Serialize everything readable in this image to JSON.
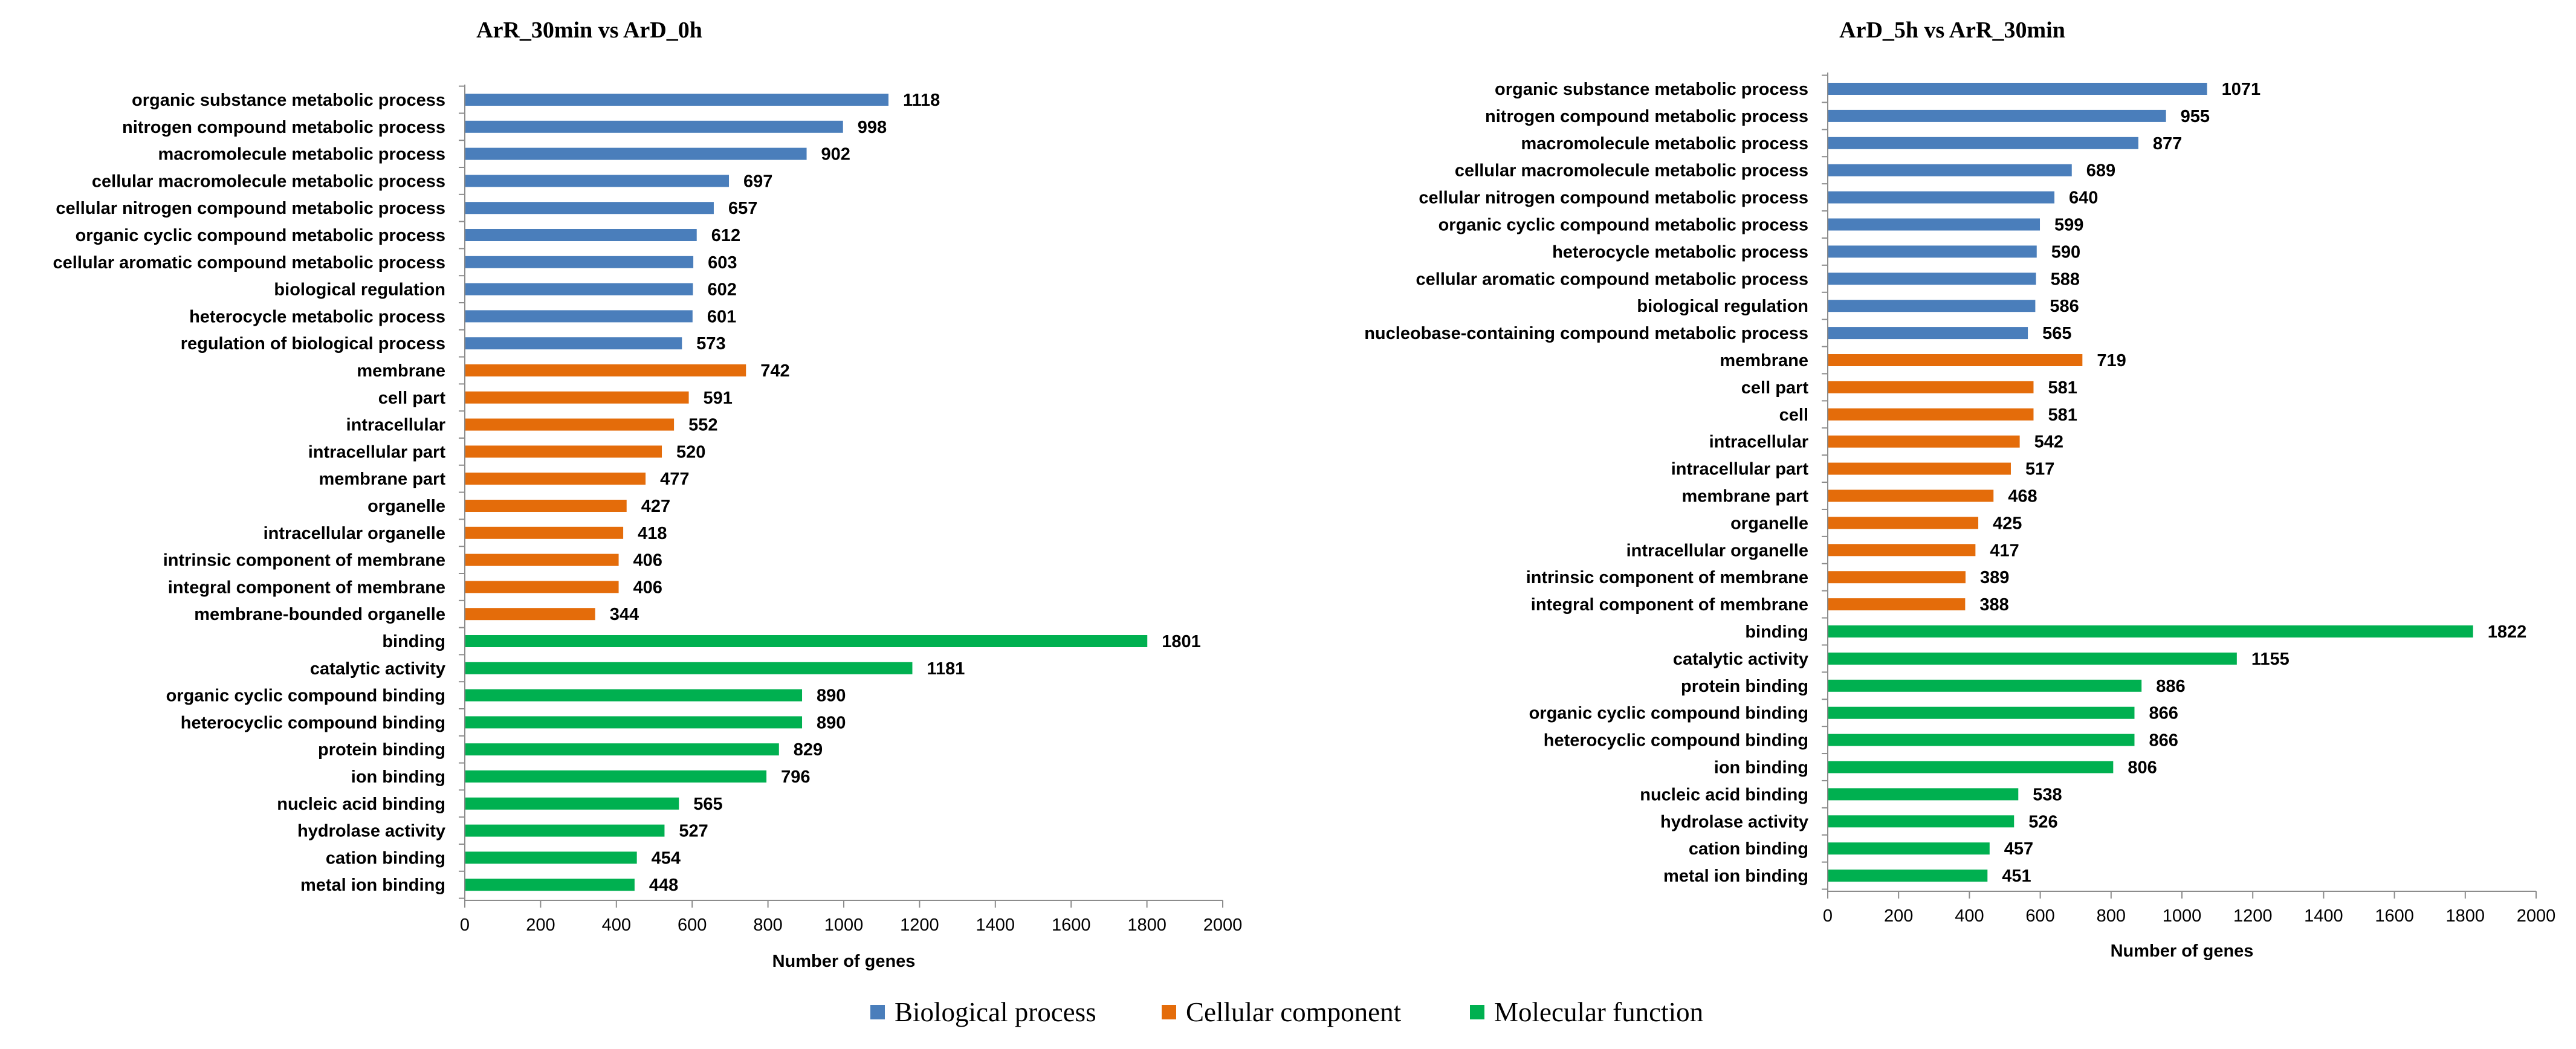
{
  "colors": {
    "Biological process": "#4a7ebb",
    "Cellular component": "#e46c0a",
    "Molecular function": "#00b050"
  },
  "legend": [
    "Biological process",
    "Cellular component",
    "Molecular function"
  ],
  "chart_data": [
    {
      "type": "bar",
      "orientation": "horizontal",
      "title": "ArR_30min vs ArD_0h",
      "xlabel": "Number of genes",
      "ylabel": "",
      "xlim": [
        0,
        2000
      ],
      "xticks": [
        0,
        200,
        400,
        600,
        800,
        1000,
        1200,
        1400,
        1600,
        1800,
        2000
      ],
      "categories": [
        "organic substance metabolic process",
        "nitrogen compound metabolic process",
        "macromolecule metabolic process",
        "cellular macromolecule metabolic process",
        "cellular nitrogen compound metabolic process",
        "organic cyclic compound metabolic process",
        "cellular aromatic compound metabolic process",
        "biological regulation",
        "heterocycle metabolic process",
        "regulation of biological process",
        "membrane",
        "cell part",
        "intracellular",
        "intracellular part",
        "membrane part",
        "organelle",
        "intracellular organelle",
        "intrinsic component of membrane",
        "integral component of membrane",
        "membrane-bounded organelle",
        "binding",
        "catalytic activity",
        "organic cyclic compound binding",
        "heterocyclic compound binding",
        "protein binding",
        "ion binding",
        "nucleic acid binding",
        "hydrolase activity",
        "cation binding",
        "metal ion binding"
      ],
      "values": [
        1118,
        998,
        902,
        697,
        657,
        612,
        603,
        602,
        601,
        573,
        742,
        591,
        552,
        520,
        477,
        427,
        418,
        406,
        406,
        344,
        1801,
        1181,
        890,
        890,
        829,
        796,
        565,
        527,
        454,
        448
      ],
      "groups": [
        "Biological process",
        "Biological process",
        "Biological process",
        "Biological process",
        "Biological process",
        "Biological process",
        "Biological process",
        "Biological process",
        "Biological process",
        "Biological process",
        "Cellular component",
        "Cellular component",
        "Cellular component",
        "Cellular component",
        "Cellular component",
        "Cellular component",
        "Cellular component",
        "Cellular component",
        "Cellular component",
        "Cellular component",
        "Molecular function",
        "Molecular function",
        "Molecular function",
        "Molecular function",
        "Molecular function",
        "Molecular function",
        "Molecular function",
        "Molecular function",
        "Molecular function",
        "Molecular function"
      ]
    },
    {
      "type": "bar",
      "orientation": "horizontal",
      "title": "ArD_5h vs ArR_30min",
      "xlabel": "Number of genes",
      "ylabel": "",
      "xlim": [
        0,
        2000
      ],
      "xticks": [
        0,
        200,
        400,
        600,
        800,
        1000,
        1200,
        1400,
        1600,
        1800,
        2000
      ],
      "categories": [
        "organic substance metabolic process",
        "nitrogen compound metabolic process",
        "macromolecule metabolic process",
        "cellular macromolecule metabolic process",
        "cellular nitrogen compound metabolic process",
        "organic cyclic compound metabolic process",
        "heterocycle metabolic process",
        "cellular aromatic compound metabolic process",
        "biological regulation",
        "nucleobase-containing compound metabolic process",
        "membrane",
        "cell part",
        "cell",
        "intracellular",
        "intracellular part",
        "membrane part",
        "organelle",
        "intracellular organelle",
        "intrinsic component of membrane",
        "integral component of membrane",
        "binding",
        "catalytic activity",
        "protein binding",
        "organic cyclic compound binding",
        "heterocyclic compound binding",
        "ion binding",
        "nucleic acid binding",
        "hydrolase activity",
        "cation binding",
        "metal ion binding"
      ],
      "values": [
        1071,
        955,
        877,
        689,
        640,
        599,
        590,
        588,
        586,
        565,
        719,
        581,
        581,
        542,
        517,
        468,
        425,
        417,
        389,
        388,
        1822,
        1155,
        886,
        866,
        866,
        806,
        538,
        526,
        457,
        451
      ],
      "groups": [
        "Biological process",
        "Biological process",
        "Biological process",
        "Biological process",
        "Biological process",
        "Biological process",
        "Biological process",
        "Biological process",
        "Biological process",
        "Biological process",
        "Cellular component",
        "Cellular component",
        "Cellular component",
        "Cellular component",
        "Cellular component",
        "Cellular component",
        "Cellular component",
        "Cellular component",
        "Cellular component",
        "Cellular component",
        "Molecular function",
        "Molecular function",
        "Molecular function",
        "Molecular function",
        "Molecular function",
        "Molecular function",
        "Molecular function",
        "Molecular function",
        "Molecular function",
        "Molecular function"
      ]
    }
  ]
}
